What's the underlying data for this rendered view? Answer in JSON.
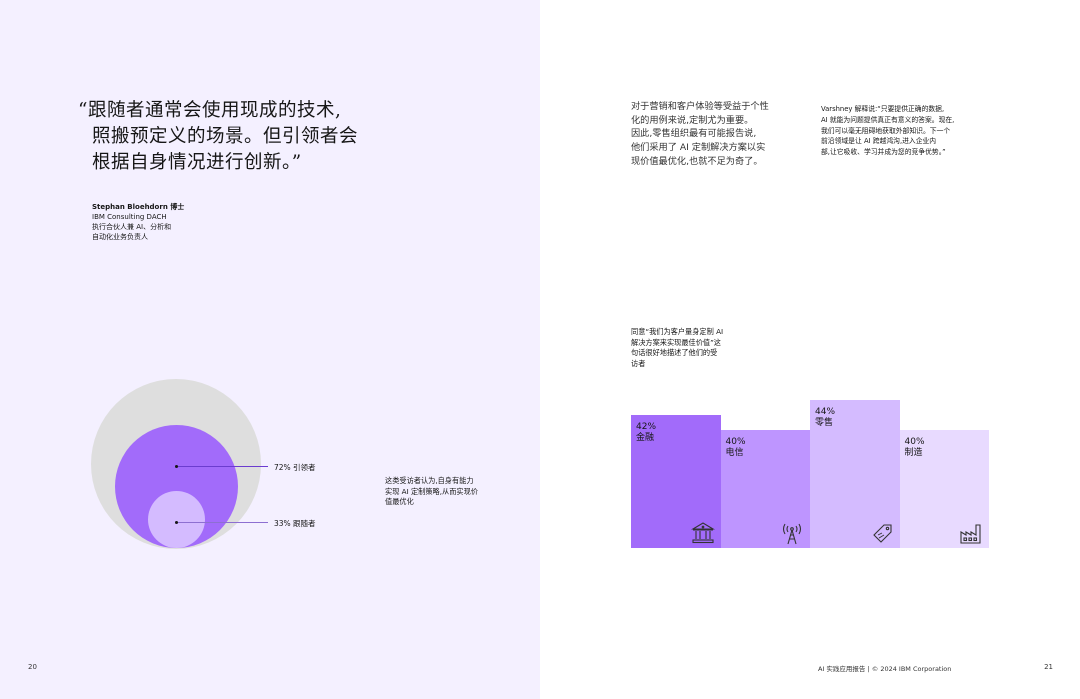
{
  "left_page": {
    "quote_lines": [
      "“跟随者通常会使用现成的技术,",
      "照搬预定义的场景。但引领者会",
      "根据自身情况进行创新。”"
    ],
    "author": {
      "name": "Stephan Bloehdorn 博士",
      "org": "IBM Consulting DACH",
      "role_line1": "执行合伙人兼 AI、分析和",
      "role_line2": "自动化业务负责人"
    },
    "circles": {
      "leader_label": "72% 引领者",
      "follower_label": "33% 跟随者",
      "colors": {
        "outer": "#dedede",
        "leader": "#a26bfa",
        "follower": "#d4bbff"
      }
    },
    "note_lines": [
      "这类受访者认为,自身有能力",
      "实现 AI 定制策略,从而实现价",
      "值最优化"
    ],
    "page_number": "20"
  },
  "right_page": {
    "para1_lines": [
      "对于营销和客户体验等受益于个性",
      "化的用例来说,定制尤为重要。",
      "因此,零售组织最有可能报告说,",
      "他们采用了 AI 定制解决方案以实",
      "现价值最优化,也就不足为奇了。"
    ],
    "para2_lines": [
      "Varshney 解释说:“只要提供正确的数据,",
      "AI 就能为问题提供真正有意义的答案。现在,",
      "我们可以毫无阻碍地获取外部知识。下一个",
      "前沿领域是让 AI 跨越鸿沟,进入企业内",
      "部,让它吸收、学习并成为您的竞争优势。”"
    ],
    "para3_lines": [
      "同意“我们为客户量身定制 AI",
      "解决方案来实现最佳价值”这",
      "句话很好地描述了他们的受",
      "访者"
    ],
    "footer": "AI 实践应用报告 | © 2024 IBM Corporation",
    "page_number": "21"
  },
  "chart_data": {
    "type": "bar",
    "categories": [
      "金融",
      "电信",
      "零售",
      "制造"
    ],
    "values": [
      42,
      40,
      44,
      40
    ],
    "value_labels": [
      "42%",
      "40%",
      "44%",
      "40%"
    ],
    "icons": [
      "bank-icon",
      "radio-tower-icon",
      "price-tag-icon",
      "factory-icon"
    ],
    "colors": [
      "#a26bfa",
      "#be95ff",
      "#d4bbff",
      "#e8daff"
    ]
  }
}
